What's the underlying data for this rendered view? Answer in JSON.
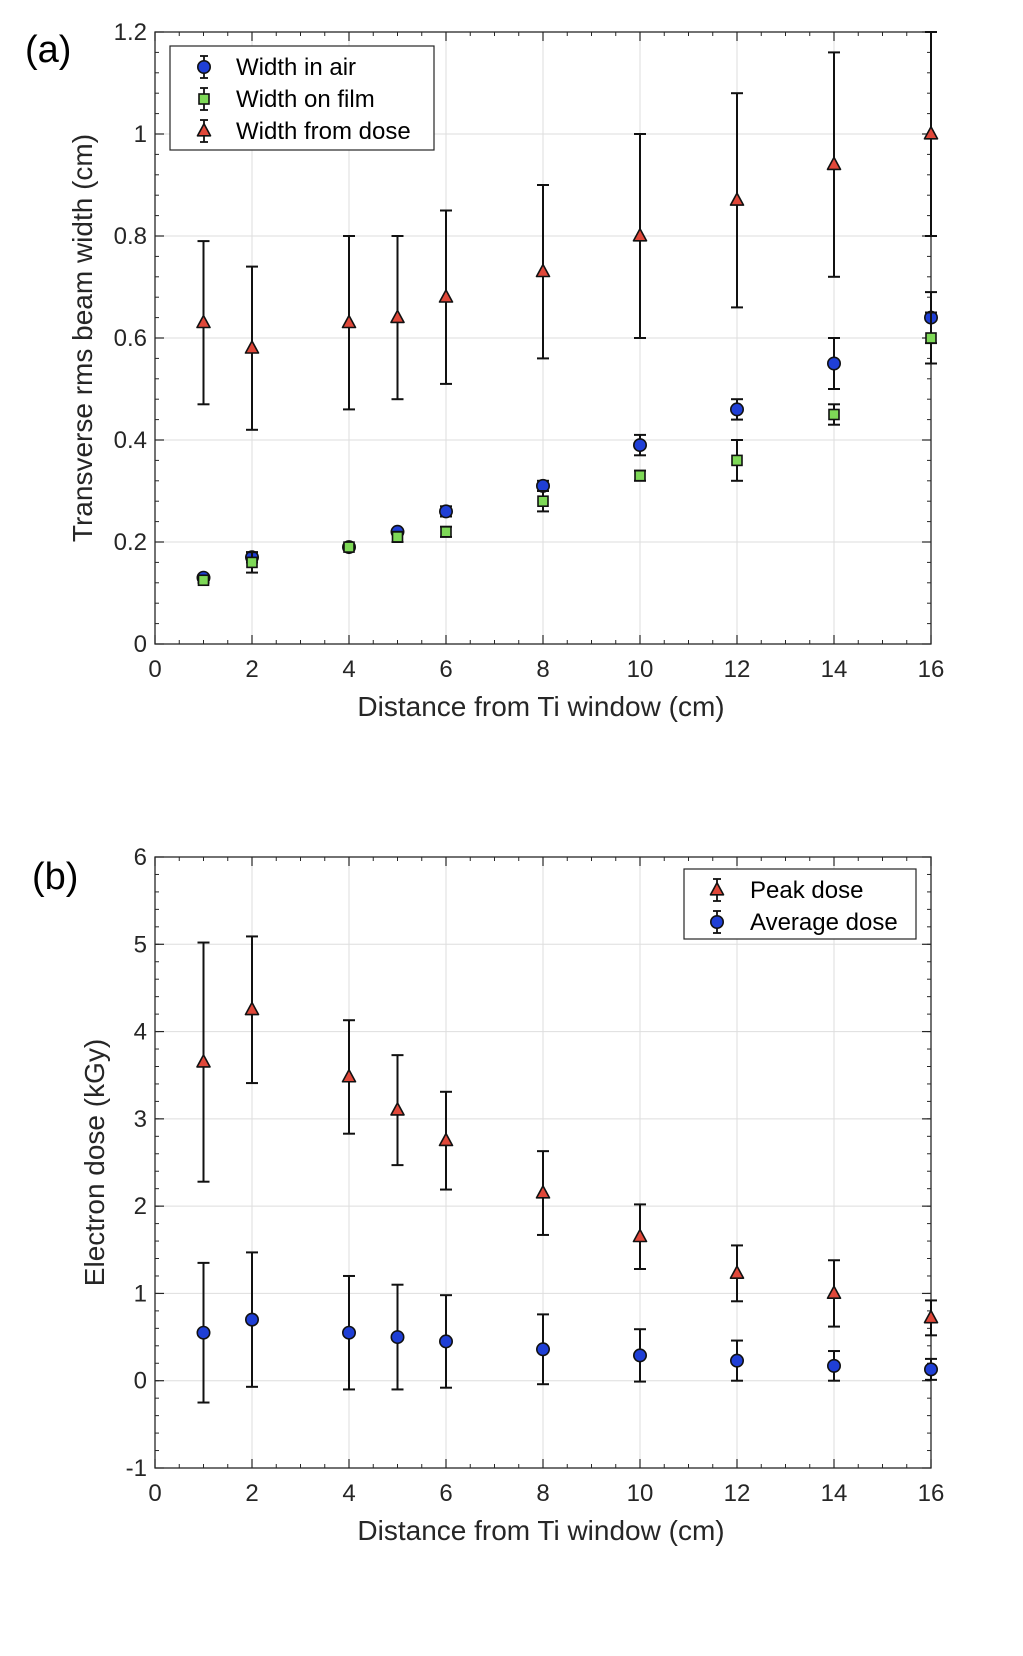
{
  "chart_data": [
    {
      "type": "scatter",
      "panel_label": "(a)",
      "title": "",
      "xlabel": "Distance from Ti window (cm)",
      "ylabel": "Transverse rms beam width (cm)",
      "xlim": [
        0,
        16
      ],
      "ylim": [
        0,
        1.2
      ],
      "xticks": [
        0,
        2,
        4,
        6,
        8,
        10,
        12,
        14,
        16
      ],
      "yticks": [
        0,
        0.2,
        0.4,
        0.6,
        0.8,
        1,
        1.2
      ],
      "xtick_labels": [
        "0",
        "2",
        "4",
        "6",
        "8",
        "10",
        "12",
        "14",
        "16"
      ],
      "ytick_labels": [
        "0",
        "0.2",
        "0.4",
        "0.6",
        "0.8",
        "1",
        "1.2"
      ],
      "grid": true,
      "legend_position": "top-left",
      "series": [
        {
          "name": "Width in air",
          "marker": "circle",
          "color": "#1f3fd6",
          "x": [
            1,
            2,
            4,
            5,
            6,
            8,
            10,
            12,
            14,
            16
          ],
          "y": [
            0.13,
            0.17,
            0.19,
            0.22,
            0.26,
            0.31,
            0.39,
            0.46,
            0.55,
            0.64
          ],
          "err": [
            0.005,
            0.01,
            0.005,
            0.005,
            0.01,
            0.01,
            0.02,
            0.02,
            0.05,
            0.05
          ]
        },
        {
          "name": "Width on film",
          "marker": "square",
          "color": "#7ed957",
          "x": [
            1,
            2,
            4,
            5,
            6,
            8,
            10,
            12,
            14,
            16
          ],
          "y": [
            0.125,
            0.16,
            0.19,
            0.21,
            0.22,
            0.28,
            0.33,
            0.36,
            0.45,
            0.6
          ],
          "err": [
            0.005,
            0.02,
            0.005,
            0.01,
            0.01,
            0.02,
            0.01,
            0.04,
            0.02,
            0.05
          ]
        },
        {
          "name": "Width from dose",
          "marker": "triangle",
          "color": "#e0483a",
          "x": [
            1,
            2,
            4,
            5,
            6,
            8,
            10,
            12,
            14,
            16
          ],
          "y": [
            0.63,
            0.58,
            0.63,
            0.64,
            0.68,
            0.73,
            0.8,
            0.87,
            0.94,
            1.0
          ],
          "err": [
            0.16,
            0.16,
            0.17,
            0.16,
            0.17,
            0.17,
            0.2,
            0.21,
            0.22,
            0.2
          ]
        }
      ]
    },
    {
      "type": "scatter",
      "panel_label": "(b)",
      "title": "",
      "xlabel": "Distance from Ti window (cm)",
      "ylabel": "Electron dose (kGy)",
      "xlim": [
        0,
        16
      ],
      "ylim": [
        -1,
        6
      ],
      "xticks": [
        0,
        2,
        4,
        6,
        8,
        10,
        12,
        14,
        16
      ],
      "yticks": [
        -1,
        0,
        1,
        2,
        3,
        4,
        5,
        6
      ],
      "xtick_labels": [
        "0",
        "2",
        "4",
        "6",
        "8",
        "10",
        "12",
        "14",
        "16"
      ],
      "ytick_labels": [
        "-1",
        "0",
        "1",
        "2",
        "3",
        "4",
        "5",
        "6"
      ],
      "grid": true,
      "legend_position": "top-right",
      "series": [
        {
          "name": "Peak dose",
          "marker": "triangle",
          "color": "#e0483a",
          "x": [
            1,
            2,
            4,
            5,
            6,
            8,
            10,
            12,
            14,
            16
          ],
          "y": [
            3.65,
            4.25,
            3.48,
            3.1,
            2.75,
            2.15,
            1.65,
            1.23,
            1.0,
            0.72
          ],
          "err": [
            1.37,
            0.84,
            0.65,
            0.63,
            0.56,
            0.48,
            0.37,
            0.32,
            0.38,
            0.2
          ]
        },
        {
          "name": "Average dose",
          "marker": "circle",
          "color": "#1f3fd6",
          "x": [
            1,
            2,
            4,
            5,
            6,
            8,
            10,
            12,
            14,
            16
          ],
          "y": [
            0.55,
            0.7,
            0.55,
            0.5,
            0.45,
            0.36,
            0.29,
            0.23,
            0.17,
            0.13
          ],
          "err": [
            0.8,
            0.77,
            0.65,
            0.6,
            0.53,
            0.4,
            0.3,
            0.23,
            0.17,
            0.12
          ]
        }
      ]
    }
  ]
}
